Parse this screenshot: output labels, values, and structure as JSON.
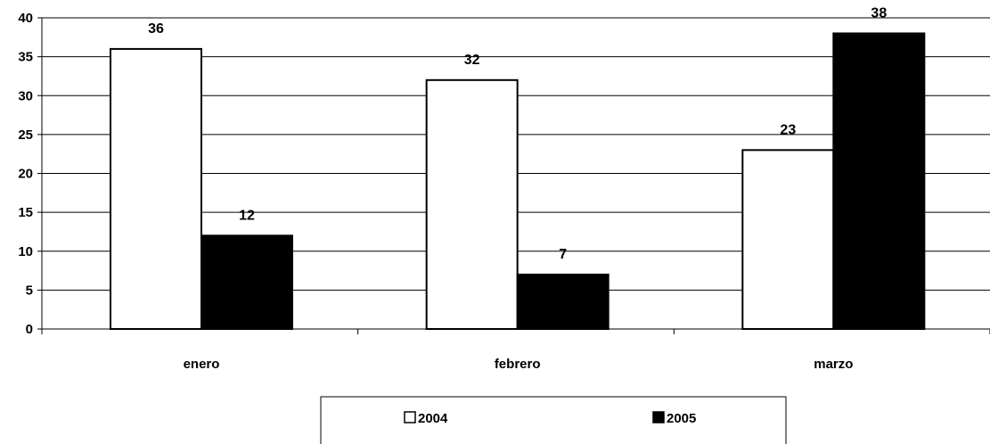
{
  "chart_data": {
    "type": "bar",
    "categories": [
      "enero",
      "febrero",
      "marzo"
    ],
    "series": [
      {
        "name": "2004",
        "values": [
          36,
          32,
          23
        ],
        "color": "#ffffff"
      },
      {
        "name": "2005",
        "values": [
          12,
          7,
          38
        ],
        "color": "#000000"
      }
    ],
    "yticks": [
      "0",
      "5",
      "10",
      "15",
      "20",
      "25",
      "30",
      "35",
      "40"
    ],
    "ylim": [
      0,
      40
    ],
    "grid": true,
    "legend_position": "bottom",
    "data_labels": true
  }
}
